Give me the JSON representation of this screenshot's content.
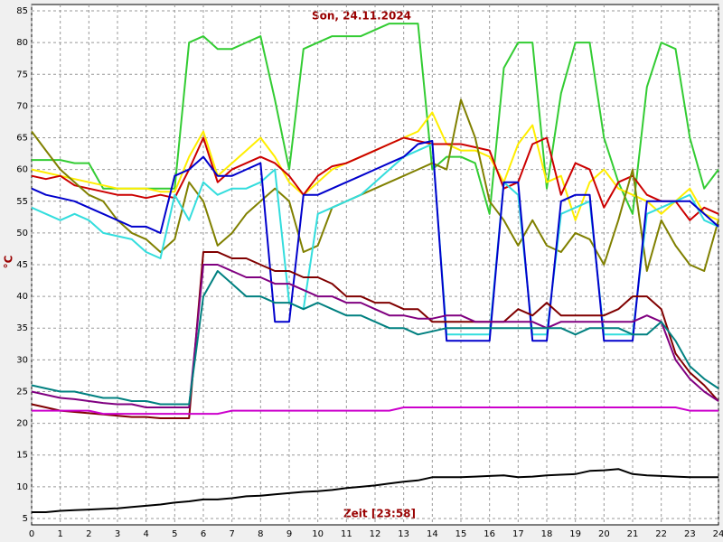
{
  "chart_data": {
    "type": "line",
    "title": "Son, 24.11.2024",
    "xlabel": "Zeit [23:58]",
    "ylabel": "°C",
    "x": [
      0,
      0.5,
      1,
      1.5,
      2,
      2.5,
      3,
      3.5,
      4,
      4.5,
      5,
      5.5,
      6,
      6.5,
      7,
      7.5,
      8,
      8.5,
      9,
      9.5,
      10,
      10.5,
      11,
      11.5,
      12,
      12.5,
      13,
      13.5,
      14,
      14.5,
      15,
      15.5,
      16,
      16.5,
      17,
      17.5,
      18,
      18.5,
      19,
      19.5,
      20,
      20.5,
      21,
      21.5,
      22,
      22.5,
      23,
      23.5,
      24
    ],
    "xlim": [
      0,
      24
    ],
    "xticks": [
      0,
      1,
      2,
      3,
      4,
      5,
      6,
      7,
      8,
      9,
      10,
      11,
      12,
      13,
      14,
      15,
      16,
      17,
      18,
      19,
      20,
      21,
      22,
      23,
      24
    ],
    "ylim": [
      4,
      86
    ],
    "yticks": [
      5,
      10,
      15,
      20,
      25,
      30,
      35,
      40,
      45,
      50,
      55,
      60,
      65,
      70,
      75,
      80,
      85
    ],
    "grid": true,
    "series": [
      {
        "color": "#33cc33",
        "values": [
          61.5,
          61.5,
          61.5,
          61,
          61,
          57,
          57,
          57,
          57,
          57,
          57,
          80,
          81,
          79,
          79,
          80,
          81,
          71,
          60,
          79,
          80,
          81,
          81,
          81,
          82,
          83,
          83,
          83,
          60,
          62,
          62,
          61,
          53,
          76,
          80,
          80,
          57,
          72,
          80,
          80,
          65,
          58,
          53,
          73,
          80,
          79,
          65,
          57,
          60
        ]
      },
      {
        "color": "#ffee00",
        "values": [
          60,
          59.5,
          59,
          58.5,
          58,
          57.5,
          57,
          57,
          57,
          56.5,
          56.5,
          62,
          66,
          59,
          61,
          63,
          65,
          62,
          58,
          56,
          58,
          60,
          61,
          62,
          63,
          64,
          65,
          66,
          69,
          64,
          63,
          63,
          62,
          58,
          64,
          67,
          58,
          59,
          52,
          58,
          60,
          57,
          56,
          55,
          53,
          55,
          57,
          53,
          52
        ]
      },
      {
        "color": "#cc0000",
        "values": [
          59,
          58.5,
          59,
          57.5,
          57,
          56.5,
          56,
          56,
          55.5,
          56,
          55.5,
          60,
          65,
          58,
          60,
          61,
          62,
          61,
          59,
          56,
          59,
          60.5,
          61,
          62,
          63,
          64,
          65,
          64.5,
          64,
          64,
          64,
          63.5,
          63,
          57,
          58,
          64,
          65,
          56,
          61,
          60,
          54,
          58,
          59,
          56,
          55,
          55,
          52,
          54,
          53
        ]
      },
      {
        "color": "#808000",
        "values": [
          66,
          63,
          60,
          58,
          56,
          55,
          52,
          50,
          49,
          47,
          49,
          58,
          55,
          48,
          50,
          53,
          55,
          57,
          55,
          47,
          48,
          54,
          55,
          56,
          57,
          58,
          59,
          60,
          61,
          60,
          71,
          65,
          55,
          52,
          48,
          52,
          48,
          47,
          50,
          49,
          45,
          52,
          60,
          44,
          52,
          48,
          45,
          44,
          52
        ]
      },
      {
        "color": "#33dddd",
        "values": [
          54,
          53,
          52,
          53,
          52,
          50,
          49.5,
          49,
          47,
          46,
          56,
          52,
          58,
          56,
          57,
          57,
          58,
          60,
          39,
          38,
          53,
          54,
          55,
          56,
          58,
          60,
          62,
          63,
          64,
          34,
          34,
          34,
          34,
          58,
          56,
          34,
          34,
          53,
          54,
          55,
          34,
          34,
          34,
          53,
          54,
          55,
          56,
          52,
          51
        ]
      },
      {
        "color": "#0000cc",
        "values": [
          57,
          56,
          55.5,
          55,
          54,
          53,
          52,
          51,
          51,
          50,
          59,
          60,
          62,
          59,
          59,
          60,
          61,
          36,
          36,
          56,
          56,
          57,
          58,
          59,
          60,
          61,
          62,
          64,
          64.5,
          33,
          33,
          33,
          33,
          58,
          58,
          33,
          33,
          55,
          56,
          56,
          33,
          33,
          33,
          55,
          55,
          55,
          55,
          53,
          51
        ]
      },
      {
        "color": "#800000",
        "values": [
          23,
          22.5,
          22,
          21.8,
          21.6,
          21.4,
          21.2,
          21,
          21,
          20.8,
          20.8,
          20.8,
          47,
          47,
          46,
          46,
          45,
          44,
          44,
          43,
          43,
          42,
          40,
          40,
          39,
          39,
          38,
          38,
          36,
          36,
          36,
          36,
          36,
          36,
          38,
          37,
          39,
          37,
          37,
          37,
          37,
          38,
          40,
          40,
          38,
          31,
          28,
          26,
          23.5
        ]
      },
      {
        "color": "#800080",
        "values": [
          25,
          24.5,
          24,
          23.8,
          23.5,
          23.2,
          23,
          23,
          22.5,
          22.5,
          22.5,
          22.5,
          45,
          45,
          44,
          43,
          43,
          42,
          42,
          41,
          40,
          40,
          39,
          39,
          38,
          37,
          37,
          36.5,
          36.5,
          37,
          37,
          36,
          36,
          36,
          36,
          36,
          35,
          36,
          36,
          36,
          36,
          36,
          36,
          37,
          36,
          30,
          27,
          25,
          23.5
        ]
      },
      {
        "color": "#008080",
        "values": [
          26,
          25.5,
          25,
          25,
          24.5,
          24,
          24,
          23.5,
          23.5,
          23,
          23,
          23,
          40,
          44,
          42,
          40,
          40,
          39,
          39,
          38,
          39,
          38,
          37,
          37,
          36,
          35,
          35,
          34,
          34.5,
          35,
          35,
          35,
          35,
          35,
          35,
          35,
          35,
          35,
          34,
          35,
          35,
          35,
          34,
          34,
          36,
          33,
          29,
          27,
          25.5
        ]
      },
      {
        "color": "#cc00cc",
        "values": [
          22,
          22,
          22,
          22,
          22,
          21.5,
          21.5,
          21.5,
          21.5,
          21.5,
          21.5,
          21.5,
          21.5,
          21.5,
          22,
          22,
          22,
          22,
          22,
          22,
          22,
          22,
          22,
          22,
          22,
          22,
          22.5,
          22.5,
          22.5,
          22.5,
          22.5,
          22.5,
          22.5,
          22.5,
          22.5,
          22.5,
          22.5,
          22.5,
          22.5,
          22.5,
          22.5,
          22.5,
          22.5,
          22.5,
          22.5,
          22.5,
          22,
          22,
          22
        ]
      },
      {
        "color": "#000000",
        "values": [
          6,
          6,
          6.2,
          6.3,
          6.4,
          6.5,
          6.6,
          6.8,
          7,
          7.2,
          7.5,
          7.7,
          8,
          8,
          8.2,
          8.5,
          8.6,
          8.8,
          9,
          9.2,
          9.3,
          9.5,
          9.8,
          10,
          10.2,
          10.5,
          10.8,
          11,
          11.5,
          11.5,
          11.5,
          11.6,
          11.7,
          11.8,
          11.5,
          11.6,
          11.8,
          11.9,
          12,
          12.5,
          12.6,
          12.8,
          12,
          11.8,
          11.7,
          11.6,
          11.5,
          11.5,
          11.5
        ]
      }
    ]
  }
}
